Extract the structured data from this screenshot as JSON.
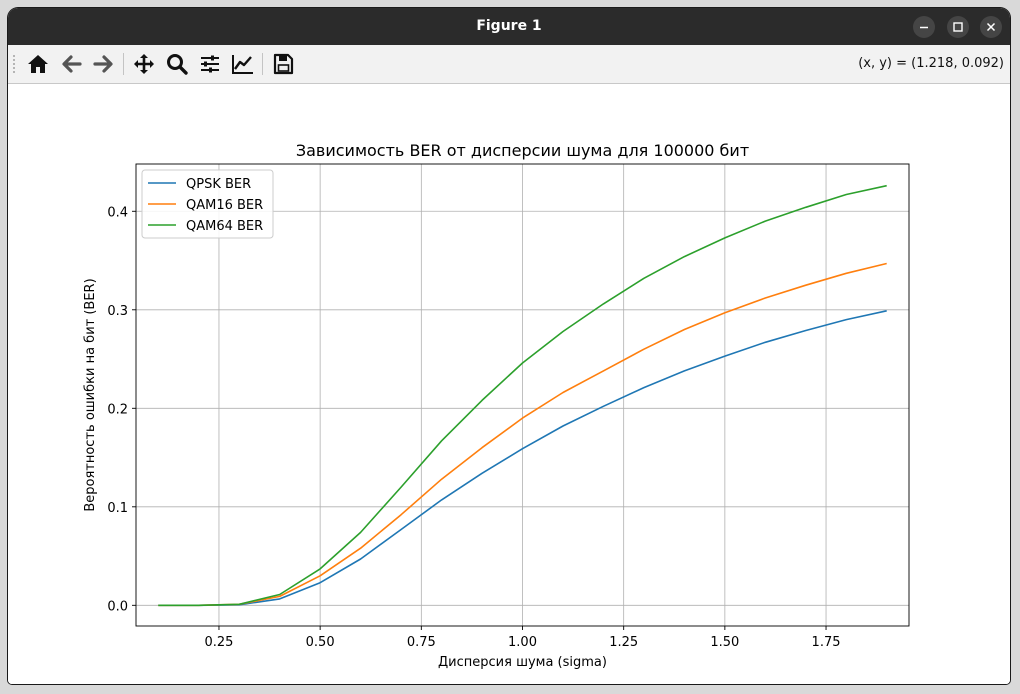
{
  "window": {
    "title": "Figure 1"
  },
  "toolbar": {
    "buttons": [
      {
        "name": "home-icon",
        "label": "home"
      },
      {
        "name": "back-icon",
        "label": "back"
      },
      {
        "name": "forward-icon",
        "label": "forward"
      },
      {
        "name": "pan-icon",
        "label": "pan"
      },
      {
        "name": "zoom-icon",
        "label": "zoom"
      },
      {
        "name": "configure-subplots-icon",
        "label": "subplots"
      },
      {
        "name": "edit-axis-icon",
        "label": "customize"
      },
      {
        "name": "save-icon",
        "label": "save"
      }
    ],
    "coords": "(x, y) = (1.218, 0.092)"
  },
  "chart_data": {
    "type": "line",
    "title": "Зависимость BER от дисперсии шума для 100000 бит",
    "xlabel": "Дисперсия шума (sigma)",
    "ylabel": "Вероятность ошибки на бит (BER)",
    "xlim": [
      0.045,
      1.955
    ],
    "ylim": [
      -0.021,
      0.448
    ],
    "xticks": [
      0.25,
      0.5,
      0.75,
      1.0,
      1.25,
      1.5,
      1.75
    ],
    "xtick_labels": [
      "0.25",
      "0.50",
      "0.75",
      "1.00",
      "1.25",
      "1.50",
      "1.75"
    ],
    "yticks": [
      0.0,
      0.1,
      0.2,
      0.3,
      0.4
    ],
    "ytick_labels": [
      "0.0",
      "0.1",
      "0.2",
      "0.3",
      "0.4"
    ],
    "grid": true,
    "legend": "top-left",
    "x": [
      0.1,
      0.2,
      0.3,
      0.4,
      0.5,
      0.6,
      0.7,
      0.8,
      0.9,
      1.0,
      1.1,
      1.2,
      1.3,
      1.4,
      1.5,
      1.6,
      1.7,
      1.8,
      1.9
    ],
    "series": [
      {
        "name": "QPSK BER",
        "color": "#1f77b4",
        "values": [
          0.0,
          0.0,
          0.0005,
          0.0065,
          0.023,
          0.047,
          0.077,
          0.107,
          0.134,
          0.159,
          0.182,
          0.202,
          0.221,
          0.238,
          0.253,
          0.267,
          0.279,
          0.29,
          0.299
        ]
      },
      {
        "name": "QAM16 BER",
        "color": "#ff7f0e",
        "values": [
          0.0,
          0.0,
          0.001,
          0.009,
          0.03,
          0.058,
          0.092,
          0.128,
          0.16,
          0.19,
          0.216,
          0.238,
          0.26,
          0.28,
          0.297,
          0.312,
          0.325,
          0.337,
          0.347
        ]
      },
      {
        "name": "QAM64 BER",
        "color": "#2ca02c",
        "values": [
          0.0,
          0.0,
          0.001,
          0.011,
          0.037,
          0.074,
          0.12,
          0.167,
          0.208,
          0.246,
          0.278,
          0.306,
          0.332,
          0.354,
          0.373,
          0.39,
          0.404,
          0.417,
          0.426
        ]
      }
    ]
  }
}
